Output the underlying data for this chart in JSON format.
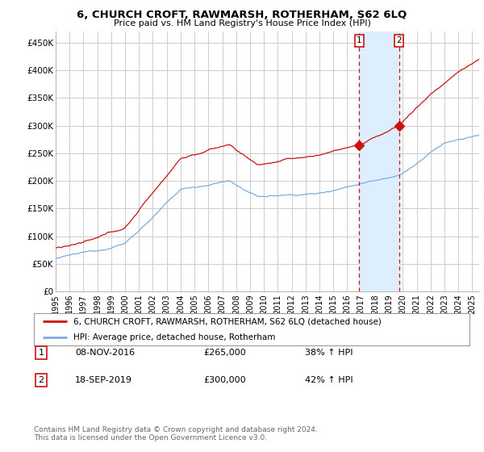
{
  "title": "6, CHURCH CROFT, RAWMARSH, ROTHERHAM, S62 6LQ",
  "subtitle": "Price paid vs. HM Land Registry's House Price Index (HPI)",
  "ylabel_ticks": [
    "£0",
    "£50K",
    "£100K",
    "£150K",
    "£200K",
    "£250K",
    "£300K",
    "£350K",
    "£400K",
    "£450K"
  ],
  "ytick_values": [
    0,
    50000,
    100000,
    150000,
    200000,
    250000,
    300000,
    350000,
    400000,
    450000
  ],
  "ylim": [
    0,
    470000
  ],
  "xlim_start": 1995.0,
  "xlim_end": 2025.5,
  "hpi_color": "#7aade0",
  "price_color": "#cc1111",
  "shade_color": "#ddeeff",
  "sale1_date": 2016.86,
  "sale1_price": 265000,
  "sale1_label": "1",
  "sale2_date": 2019.72,
  "sale2_price": 300000,
  "sale2_label": "2",
  "legend_line1": "6, CHURCH CROFT, RAWMARSH, ROTHERHAM, S62 6LQ (detached house)",
  "legend_line2": "HPI: Average price, detached house, Rotherham",
  "annotation1_date": "08-NOV-2016",
  "annotation1_price": "£265,000",
  "annotation1_hpi": "38% ↑ HPI",
  "annotation2_date": "18-SEP-2019",
  "annotation2_price": "£300,000",
  "annotation2_hpi": "42% ↑ HPI",
  "footer": "Contains HM Land Registry data © Crown copyright and database right 2024.\nThis data is licensed under the Open Government Licence v3.0.",
  "bg_color": "#ffffff",
  "grid_color": "#cccccc"
}
